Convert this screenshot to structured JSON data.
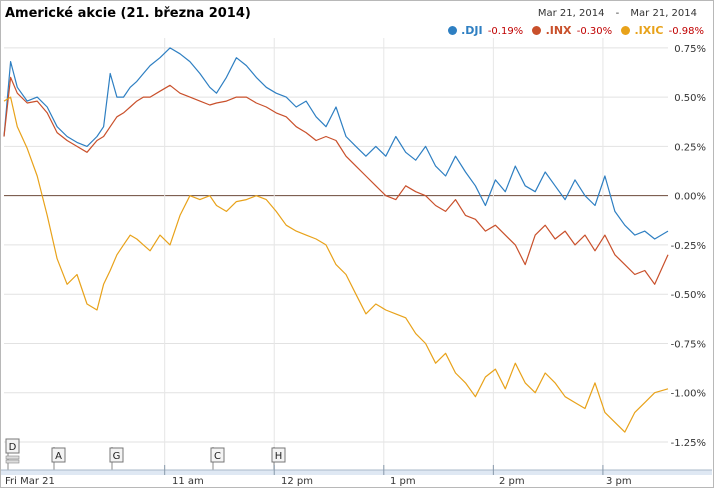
{
  "chart_data": {
    "type": "line",
    "title": "Americké akcie (21. března 2014)",
    "date_range": {
      "from": "Mar 21, 2014",
      "separator": "-",
      "to": "Mar 21, 2014"
    },
    "x_ticks": [
      "Fri Mar 21",
      "11 am",
      "12 pm",
      "1 pm",
      "2 pm",
      "3 pm"
    ],
    "y_ticks": [
      "0.75%",
      "0.50%",
      "0.25%",
      "0.00%",
      "-0.25%",
      "-0.50%",
      "-0.75%",
      "-1.00%",
      "-1.25%"
    ],
    "y_tick_values": [
      0.75,
      0.5,
      0.25,
      0,
      -0.25,
      -0.5,
      -0.75,
      -1.0,
      -1.25
    ],
    "ylim": [
      -1.25,
      0.8
    ],
    "grid": true,
    "legend_position": "top-right",
    "zero_line": true,
    "series": [
      {
        "name": ".DJI",
        "change": "-0.19%",
        "color": "#2e7fc2",
        "x": [
          0,
          0.01,
          0.02,
          0.035,
          0.05,
          0.065,
          0.08,
          0.095,
          0.11,
          0.125,
          0.14,
          0.15,
          0.16,
          0.17,
          0.18,
          0.19,
          0.2,
          0.21,
          0.22,
          0.235,
          0.25,
          0.265,
          0.28,
          0.295,
          0.31,
          0.32,
          0.335,
          0.35,
          0.365,
          0.38,
          0.395,
          0.41,
          0.425,
          0.44,
          0.455,
          0.47,
          0.485,
          0.5,
          0.515,
          0.53,
          0.545,
          0.56,
          0.575,
          0.59,
          0.605,
          0.62,
          0.635,
          0.65,
          0.665,
          0.68,
          0.695,
          0.71,
          0.725,
          0.74,
          0.755,
          0.77,
          0.785,
          0.8,
          0.815,
          0.83,
          0.845,
          0.86,
          0.875,
          0.89,
          0.905,
          0.92,
          0.935,
          0.95,
          0.965,
          0.98,
          1
        ],
        "values": [
          0.3,
          0.68,
          0.55,
          0.48,
          0.5,
          0.45,
          0.35,
          0.3,
          0.27,
          0.25,
          0.3,
          0.35,
          0.62,
          0.5,
          0.5,
          0.55,
          0.58,
          0.62,
          0.66,
          0.7,
          0.75,
          0.72,
          0.68,
          0.62,
          0.55,
          0.52,
          0.6,
          0.7,
          0.66,
          0.6,
          0.55,
          0.52,
          0.5,
          0.45,
          0.48,
          0.4,
          0.35,
          0.45,
          0.3,
          0.25,
          0.2,
          0.25,
          0.2,
          0.3,
          0.22,
          0.18,
          0.25,
          0.15,
          0.1,
          0.2,
          0.12,
          0.05,
          -0.05,
          0.08,
          0.02,
          0.15,
          0.05,
          0.02,
          0.12,
          0.05,
          -0.02,
          0.08,
          0.0,
          -0.05,
          0.1,
          -0.08,
          -0.15,
          -0.2,
          -0.18,
          -0.22,
          -0.18
        ]
      },
      {
        "name": ".INX",
        "change": "-0.30%",
        "color": "#c9502b",
        "x": [
          0,
          0.01,
          0.02,
          0.035,
          0.05,
          0.065,
          0.08,
          0.095,
          0.11,
          0.125,
          0.14,
          0.15,
          0.16,
          0.17,
          0.18,
          0.19,
          0.2,
          0.21,
          0.22,
          0.235,
          0.25,
          0.265,
          0.28,
          0.295,
          0.31,
          0.32,
          0.335,
          0.35,
          0.365,
          0.38,
          0.395,
          0.41,
          0.425,
          0.44,
          0.455,
          0.47,
          0.485,
          0.5,
          0.515,
          0.53,
          0.545,
          0.56,
          0.575,
          0.59,
          0.605,
          0.62,
          0.635,
          0.65,
          0.665,
          0.68,
          0.695,
          0.71,
          0.725,
          0.74,
          0.755,
          0.77,
          0.785,
          0.8,
          0.815,
          0.83,
          0.845,
          0.86,
          0.875,
          0.89,
          0.905,
          0.92,
          0.935,
          0.95,
          0.965,
          0.98,
          1
        ],
        "values": [
          0.3,
          0.6,
          0.52,
          0.47,
          0.48,
          0.42,
          0.32,
          0.28,
          0.25,
          0.22,
          0.28,
          0.3,
          0.35,
          0.4,
          0.42,
          0.45,
          0.48,
          0.5,
          0.5,
          0.53,
          0.56,
          0.52,
          0.5,
          0.48,
          0.46,
          0.47,
          0.48,
          0.5,
          0.5,
          0.47,
          0.45,
          0.42,
          0.4,
          0.35,
          0.32,
          0.28,
          0.3,
          0.28,
          0.2,
          0.15,
          0.1,
          0.05,
          0.0,
          -0.02,
          0.05,
          0.02,
          0.0,
          -0.05,
          -0.08,
          -0.02,
          -0.1,
          -0.12,
          -0.18,
          -0.15,
          -0.2,
          -0.25,
          -0.35,
          -0.2,
          -0.15,
          -0.22,
          -0.18,
          -0.25,
          -0.2,
          -0.28,
          -0.2,
          -0.3,
          -0.35,
          -0.4,
          -0.38,
          -0.45,
          -0.3
        ]
      },
      {
        "name": ".IXIC",
        "change": "-0.98%",
        "color": "#e8a21a",
        "x": [
          0,
          0.01,
          0.02,
          0.035,
          0.05,
          0.065,
          0.08,
          0.095,
          0.11,
          0.125,
          0.14,
          0.15,
          0.16,
          0.17,
          0.18,
          0.19,
          0.2,
          0.21,
          0.22,
          0.235,
          0.25,
          0.265,
          0.28,
          0.295,
          0.31,
          0.32,
          0.335,
          0.35,
          0.365,
          0.38,
          0.395,
          0.41,
          0.425,
          0.44,
          0.455,
          0.47,
          0.485,
          0.5,
          0.515,
          0.53,
          0.545,
          0.56,
          0.575,
          0.59,
          0.605,
          0.62,
          0.635,
          0.65,
          0.665,
          0.68,
          0.695,
          0.71,
          0.725,
          0.74,
          0.755,
          0.77,
          0.785,
          0.8,
          0.815,
          0.83,
          0.845,
          0.86,
          0.875,
          0.89,
          0.905,
          0.92,
          0.935,
          0.95,
          0.965,
          0.98,
          1
        ],
        "values": [
          0.48,
          0.5,
          0.35,
          0.24,
          0.1,
          -0.1,
          -0.32,
          -0.45,
          -0.4,
          -0.55,
          -0.58,
          -0.45,
          -0.38,
          -0.3,
          -0.25,
          -0.2,
          -0.22,
          -0.25,
          -0.28,
          -0.2,
          -0.25,
          -0.1,
          0.0,
          -0.02,
          0.0,
          -0.05,
          -0.08,
          -0.03,
          -0.02,
          0.0,
          -0.02,
          -0.08,
          -0.15,
          -0.18,
          -0.2,
          -0.22,
          -0.25,
          -0.35,
          -0.4,
          -0.5,
          -0.6,
          -0.55,
          -0.58,
          -0.6,
          -0.62,
          -0.7,
          -0.75,
          -0.85,
          -0.8,
          -0.9,
          -0.95,
          -1.02,
          -0.92,
          -0.88,
          -0.98,
          -0.85,
          -0.95,
          -1.0,
          -0.9,
          -0.95,
          -1.02,
          -1.05,
          -1.08,
          -0.95,
          -1.1,
          -1.15,
          -1.2,
          -1.1,
          -1.05,
          -1.0,
          -0.98
        ]
      }
    ],
    "event_markers": [
      "D",
      "A",
      "G",
      "C",
      "H"
    ]
  }
}
